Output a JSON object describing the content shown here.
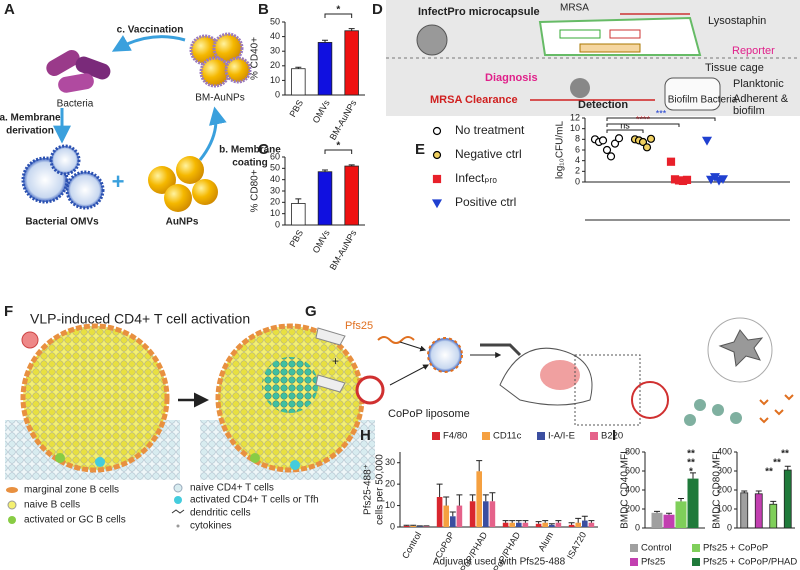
{
  "panels": {
    "A": {
      "label": "A",
      "vaccination": "c. Vaccination",
      "bacteria": "Bacteria",
      "bm_aunps": "BM-AuNPs",
      "derivation": [
        "a. Membrane",
        "derivation"
      ],
      "coating": [
        "b. Membrane",
        "coating"
      ],
      "omvs": "Bacterial OMVs",
      "aunps": "AuNPs"
    },
    "D": {
      "label": "D",
      "capsule": "InfectPro microcapsule",
      "mrsa": "MRSA",
      "lysostaphin": "Lysostaphin",
      "reporter": "Reporter",
      "diagnosis": "Diagnosis",
      "detection": "Detection",
      "tissue_cage": "Tissue cage",
      "planktonic": "Planktonic",
      "adherent": [
        "Adherent &",
        "biofilm"
      ],
      "clearance": "MRSA Clearance"
    },
    "F": {
      "label": "F",
      "title": "VLP-induced CD4+ T cell activation",
      "legend_left": [
        "marginal zone B cells",
        "naive B cells",
        "activated or GC B cells"
      ],
      "legend_right": [
        "naive CD4+ T cells",
        "activated CD4+ T cells or Tfh",
        "dendritic cells",
        "cytokines"
      ]
    },
    "G": {
      "label": "G",
      "pfs25": "Pfs25",
      "liposome": "CoPoP liposome"
    }
  },
  "chart_data": [
    {
      "type": "bar",
      "label": "B",
      "ylabel": "% CD40+",
      "categories": [
        "PBS",
        "OMVs",
        "BM-AuNPs"
      ],
      "values": [
        18,
        36,
        44
      ],
      "errors": [
        1,
        1.5,
        1.5
      ],
      "colors": [
        "#ffffff",
        "#1010e0",
        "#ee1111"
      ],
      "ylim": [
        0,
        50
      ],
      "yticks": [
        0,
        10,
        20,
        30,
        40,
        50
      ],
      "annotations": [
        "*"
      ]
    },
    {
      "type": "bar",
      "label": "C",
      "ylabel": "% CD80+",
      "categories": [
        "PBS",
        "OMVs",
        "BM-AuNPs"
      ],
      "values": [
        19,
        47,
        52
      ],
      "errors": [
        4,
        1.5,
        1
      ],
      "colors": [
        "#ffffff",
        "#1010e0",
        "#ee1111"
      ],
      "ylim": [
        0,
        60
      ],
      "yticks": [
        0,
        10,
        20,
        30,
        40,
        50,
        60
      ],
      "annotations": [
        "*"
      ]
    },
    {
      "type": "scatter",
      "label": "E",
      "title": "Biofilm Bacteria",
      "ylabel": "log₁₀CFU/mL",
      "ylim": [
        0,
        12
      ],
      "yticks": [
        0,
        2,
        4,
        6,
        8,
        10,
        12
      ],
      "series": [
        {
          "name": "No treatment",
          "marker": "circle",
          "color": "#ffffff",
          "edge": "#000000",
          "values": [
            8,
            7.5,
            7.8,
            6,
            4.8,
            7.2,
            8.2
          ]
        },
        {
          "name": "Negative ctrl",
          "marker": "circle",
          "color": "#f0d060",
          "edge": "#000000",
          "values": [
            8,
            7.8,
            7.5,
            6.5,
            8.1
          ]
        },
        {
          "name": "Infectₚᵣₒ",
          "marker": "square",
          "color": "#e8202a",
          "edge": "#e8202a",
          "values": [
            3.8,
            0.5,
            0.3,
            0.2,
            0.4
          ]
        },
        {
          "name": "Positive ctrl",
          "marker": "triangle",
          "color": "#2040d0",
          "edge": "#2040d0",
          "values": [
            7.8,
            0.5,
            1,
            0.3,
            0.6
          ]
        }
      ],
      "annotations": [
        {
          "text": "ns",
          "color": "#000000"
        },
        {
          "text": "****",
          "color": "#e8202a"
        },
        {
          "text": "***",
          "color": "#2040d0"
        }
      ]
    },
    {
      "type": "bar",
      "label": "H",
      "ylabel": [
        "Pfs25-488⁺",
        "cells per 50,000"
      ],
      "xlabel": "Adjuvant used with Pfs25-488",
      "categories": [
        "Control",
        "CoPoP",
        "CoPoP/PHAD",
        "PoP/PHAD",
        "Alum",
        "ISA720"
      ],
      "ylim": [
        0,
        35
      ],
      "yticks": [
        0,
        10,
        20,
        30
      ],
      "series": [
        {
          "name": "F4/80",
          "color": "#d9262e",
          "values": [
            0.5,
            14,
            12,
            2,
            1.5,
            1
          ],
          "errors": [
            0.3,
            6,
            3,
            1,
            1,
            1
          ]
        },
        {
          "name": "CD11c",
          "color": "#f5a040",
          "values": [
            0.5,
            10,
            26,
            2,
            2,
            2
          ],
          "errors": [
            0.3,
            4,
            5,
            1,
            1,
            2
          ]
        },
        {
          "name": "I-A/I-E",
          "color": "#3b4ea0",
          "values": [
            0.3,
            5,
            12,
            2,
            1,
            3
          ],
          "errors": [
            0.2,
            2,
            3,
            1,
            0.5,
            2
          ]
        },
        {
          "name": "B220",
          "color": "#e5628a",
          "values": [
            0.3,
            10,
            12,
            2,
            2,
            2
          ],
          "errors": [
            0.2,
            5,
            4,
            1,
            1,
            1
          ]
        }
      ]
    },
    {
      "type": "bar",
      "label": "I",
      "ylabel": "BMDC CD40 MFI",
      "ylim": [
        0,
        800
      ],
      "yticks": [
        0,
        200,
        400,
        600,
        800
      ],
      "series": [
        {
          "name": "Control",
          "color": "#a0a0a0",
          "values": [
            160
          ],
          "errors": [
            15
          ]
        },
        {
          "name": "Pfs25",
          "color": "#c23fb0",
          "values": [
            140
          ],
          "errors": [
            15
          ]
        },
        {
          "name": "Pfs25 + CoPoP",
          "color": "#7fcf5a",
          "values": [
            280
          ],
          "errors": [
            30
          ]
        },
        {
          "name": "Pfs25 + CoPoP/PHAD",
          "color": "#1f7a3a",
          "values": [
            520
          ],
          "errors": [
            60
          ]
        }
      ],
      "annotations": [
        "**",
        "**",
        "*"
      ]
    },
    {
      "type": "bar",
      "ylabel": "BMDC CD80 MFI",
      "ylim": [
        0,
        400
      ],
      "yticks": [
        0,
        100,
        200,
        300,
        400
      ],
      "values": [
        185,
        180,
        125,
        305
      ],
      "errors": [
        10,
        15,
        15,
        20
      ],
      "colors": [
        "#a0a0a0",
        "#c23fb0",
        "#7fcf5a",
        "#1f7a3a"
      ],
      "annotations": [
        "**",
        "**",
        "**"
      ]
    }
  ]
}
